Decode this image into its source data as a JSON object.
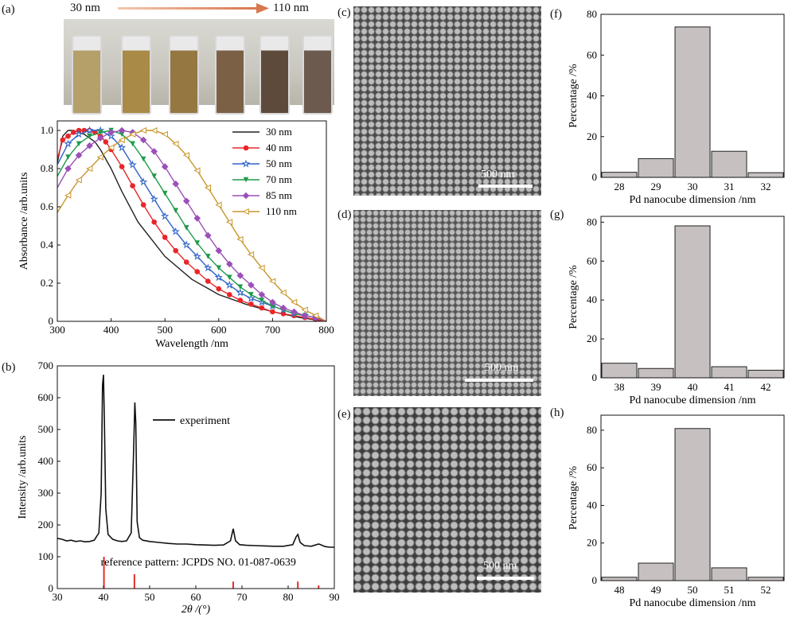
{
  "photo_strip": {
    "start_label": "30 nm",
    "end_label": "110 nm",
    "vial_colors": [
      "#b5a06a",
      "#a98a46",
      "#957742",
      "#7b6046",
      "#5e4a3b",
      "#6b5a4d"
    ]
  },
  "panels": {
    "a": "(a)",
    "b": "(b)",
    "c": "(c)",
    "d": "(d)",
    "e": "(e)",
    "f": "(f)",
    "g": "(g)",
    "h": "(h)"
  },
  "sem": [
    {
      "scale": "500 nm",
      "tone": "#4a4a4a"
    },
    {
      "scale": "500 nm",
      "tone": "#545454"
    },
    {
      "scale": "500 nm",
      "tone": "#3d3d3d"
    }
  ],
  "chart_data": [
    {
      "id": "a",
      "type": "line",
      "xlabel": "Wavelength /nm",
      "ylabel": "Absorbance /arb.units",
      "xlim": [
        300,
        800
      ],
      "ylim": [
        0,
        1.05
      ],
      "xticks": [
        300,
        400,
        500,
        600,
        700,
        800
      ],
      "yticks": [
        0,
        0.2,
        0.4,
        0.6,
        0.8,
        1.0
      ],
      "ytick_labels": [
        "0",
        "0.2",
        "0.4",
        "0.6",
        "0.8",
        "1.0"
      ],
      "legend_position": "top-right",
      "series": [
        {
          "name": "30 nm",
          "color": "#222222",
          "marker": "none",
          "x": [
            300,
            310,
            320,
            330,
            340,
            350,
            360,
            370,
            380,
            400,
            420,
            450,
            500,
            550,
            600,
            650,
            700,
            750,
            800
          ],
          "y": [
            0.83,
            0.97,
            1.0,
            1.0,
            0.99,
            0.98,
            0.96,
            0.94,
            0.9,
            0.8,
            0.68,
            0.52,
            0.34,
            0.22,
            0.14,
            0.09,
            0.05,
            0.02,
            0.0
          ]
        },
        {
          "name": "40 nm",
          "color": "#e8262a",
          "marker": "circle",
          "x": [
            300,
            310,
            320,
            330,
            340,
            350,
            360,
            370,
            380,
            390,
            400,
            420,
            440,
            460,
            480,
            500,
            520,
            540,
            560,
            580,
            600,
            620,
            640,
            660,
            680,
            700,
            720,
            740,
            760,
            780,
            800
          ],
          "y": [
            0.85,
            0.95,
            0.97,
            0.99,
            1.0,
            1.0,
            1.0,
            0.99,
            0.97,
            0.94,
            0.9,
            0.81,
            0.71,
            0.61,
            0.52,
            0.44,
            0.37,
            0.31,
            0.26,
            0.21,
            0.17,
            0.14,
            0.11,
            0.09,
            0.07,
            0.05,
            0.04,
            0.03,
            0.02,
            0.01,
            0.0
          ]
        },
        {
          "name": "50 nm",
          "color": "#2e63c8",
          "marker": "star",
          "x": [
            300,
            320,
            340,
            360,
            380,
            400,
            420,
            440,
            460,
            480,
            500,
            520,
            540,
            560,
            580,
            600,
            620,
            640,
            660,
            680,
            700,
            720,
            740,
            760,
            780,
            800
          ],
          "y": [
            0.82,
            0.93,
            0.98,
            1.0,
            1.0,
            0.97,
            0.91,
            0.82,
            0.73,
            0.64,
            0.55,
            0.47,
            0.4,
            0.34,
            0.28,
            0.23,
            0.19,
            0.15,
            0.12,
            0.1,
            0.08,
            0.06,
            0.04,
            0.03,
            0.02,
            0.0
          ]
        },
        {
          "name": "70 nm",
          "color": "#1f9a4a",
          "marker": "triangle-down",
          "x": [
            300,
            320,
            340,
            360,
            380,
            400,
            420,
            440,
            460,
            480,
            500,
            520,
            540,
            560,
            580,
            600,
            620,
            640,
            660,
            680,
            700,
            720,
            740,
            760,
            780,
            800
          ],
          "y": [
            0.76,
            0.86,
            0.93,
            0.97,
            0.99,
            1.0,
            0.98,
            0.93,
            0.85,
            0.76,
            0.67,
            0.58,
            0.49,
            0.41,
            0.34,
            0.28,
            0.23,
            0.18,
            0.14,
            0.11,
            0.08,
            0.06,
            0.04,
            0.03,
            0.02,
            0.0
          ]
        },
        {
          "name": "85 nm",
          "color": "#9b4fb8",
          "marker": "diamond",
          "x": [
            300,
            320,
            340,
            360,
            380,
            400,
            420,
            440,
            460,
            480,
            500,
            520,
            540,
            560,
            580,
            600,
            620,
            640,
            660,
            680,
            700,
            720,
            740,
            760,
            780,
            800
          ],
          "y": [
            0.7,
            0.8,
            0.87,
            0.92,
            0.96,
            0.99,
            1.0,
            0.99,
            0.95,
            0.89,
            0.81,
            0.72,
            0.63,
            0.54,
            0.45,
            0.37,
            0.3,
            0.24,
            0.19,
            0.14,
            0.1,
            0.07,
            0.05,
            0.03,
            0.02,
            0.0
          ]
        },
        {
          "name": "110 nm",
          "color": "#c8962a",
          "marker": "triangle-left",
          "x": [
            300,
            320,
            340,
            360,
            380,
            400,
            420,
            440,
            460,
            480,
            500,
            520,
            540,
            560,
            580,
            600,
            620,
            640,
            660,
            680,
            700,
            720,
            740,
            760,
            780,
            800
          ],
          "y": [
            0.57,
            0.66,
            0.74,
            0.8,
            0.86,
            0.91,
            0.95,
            0.98,
            1.0,
            1.0,
            0.98,
            0.93,
            0.87,
            0.79,
            0.7,
            0.61,
            0.52,
            0.43,
            0.35,
            0.28,
            0.21,
            0.15,
            0.1,
            0.06,
            0.03,
            0.0
          ]
        }
      ]
    },
    {
      "id": "b",
      "type": "line",
      "xlabel": "2θ /(°)",
      "ylabel": "Intensity /arb.units",
      "xlim": [
        30,
        90
      ],
      "ylim": [
        0,
        700
      ],
      "xticks": [
        30,
        40,
        50,
        60,
        70,
        80,
        90
      ],
      "yticks": [
        0,
        100,
        200,
        300,
        400,
        500,
        600,
        700
      ],
      "legend_position": "top-right",
      "series": [
        {
          "name": "experiment",
          "color": "#111111",
          "x": [
            30,
            31,
            32,
            33,
            34,
            35,
            36,
            37,
            38,
            39,
            39.5,
            39.8,
            40.0,
            40.2,
            40.5,
            41,
            42,
            43,
            44,
            45,
            46,
            46.5,
            46.8,
            47.0,
            47.3,
            47.8,
            48.5,
            50,
            52,
            54,
            56,
            58,
            60,
            62,
            64,
            66,
            67.5,
            68.1,
            68.6,
            69.5,
            71,
            73,
            75,
            77,
            79,
            81,
            81.7,
            82.1,
            82.6,
            83.5,
            85,
            86.6,
            87,
            88,
            89,
            90
          ],
          "y": [
            158,
            155,
            150,
            152,
            148,
            150,
            147,
            148,
            152,
            175,
            300,
            640,
            672,
            520,
            250,
            170,
            155,
            150,
            148,
            150,
            175,
            420,
            585,
            520,
            210,
            160,
            152,
            148,
            145,
            142,
            140,
            140,
            138,
            137,
            136,
            137,
            150,
            188,
            150,
            138,
            136,
            135,
            134,
            133,
            133,
            138,
            162,
            170,
            145,
            135,
            133,
            140,
            138,
            132,
            130,
            130
          ]
        }
      ],
      "reference": {
        "label": "reference pattern: JCPDS NO. 01-087-0639",
        "color": "#e0302a",
        "peaks_x": [
          40.1,
          46.7,
          68.1,
          82.1,
          86.6
        ],
        "peaks_y": [
          100,
          45,
          22,
          22,
          10
        ]
      }
    },
    {
      "id": "f",
      "type": "bar",
      "xlabel": "Pd nanocube dimension /nm",
      "ylabel": "Percentage /%",
      "categories": [
        "28",
        "29",
        "30",
        "31",
        "32"
      ],
      "values": [
        2.5,
        9.2,
        73.8,
        12.8,
        2.3
      ],
      "ylim": [
        0,
        80
      ],
      "yticks": [
        0,
        20,
        40,
        60,
        80
      ]
    },
    {
      "id": "g",
      "type": "bar",
      "xlabel": "Pd nanocube dimension /nm",
      "ylabel": "Percentage /%",
      "categories": [
        "38",
        "39",
        "40",
        "41",
        "42"
      ],
      "values": [
        7.5,
        4.8,
        78.1,
        5.7,
        3.9
      ],
      "ylim": [
        0,
        83
      ],
      "yticks": [
        0,
        20,
        40,
        60,
        80
      ]
    },
    {
      "id": "h",
      "type": "bar",
      "xlabel": "Pd nanocube dimension /nm",
      "ylabel": "Percentage /%",
      "categories": [
        "48",
        "49",
        "50",
        "51",
        "52"
      ],
      "values": [
        1.8,
        9.3,
        80.9,
        6.8,
        1.8
      ],
      "ylim": [
        0,
        88
      ],
      "yticks": [
        0,
        20,
        40,
        60,
        80
      ]
    }
  ]
}
